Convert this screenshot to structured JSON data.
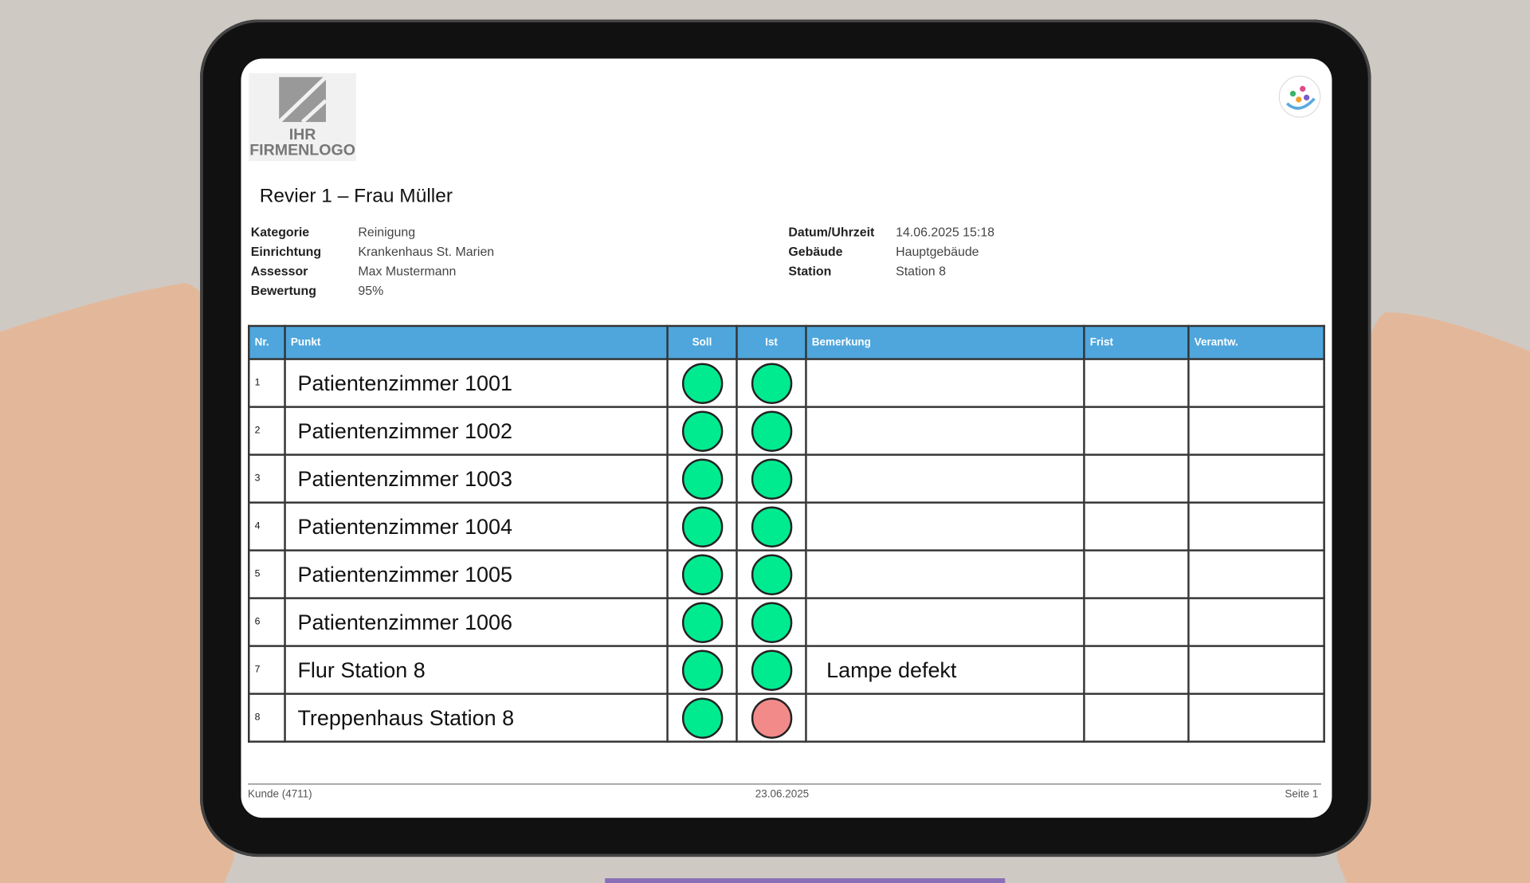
{
  "logo": {
    "line1": "IHR",
    "line2": "FIRMENLOGO"
  },
  "title": "Revier 1 – Frau Müller",
  "info_left": [
    [
      "Kategorie",
      "Reinigung"
    ],
    [
      "Einrichtung",
      "Krankenhaus St. Marien"
    ],
    [
      "Assessor",
      "Max Mustermann"
    ],
    [
      "Bewertung",
      "95%"
    ]
  ],
  "info_right": [
    [
      "Datum/Uhrzeit",
      "14.06.2025 15:18"
    ],
    [
      "Gebäude",
      "Hauptgebäude"
    ],
    [
      "Station",
      "Station 8"
    ]
  ],
  "table": {
    "header": [
      "Nr.",
      "Punkt",
      "Soll",
      "Ist",
      "Bemerkung",
      "Frist",
      "Verantw."
    ],
    "header_color": "#4ea6dc",
    "rows": [
      {
        "nr": "1",
        "punkt": "Patientenzimmer 1001",
        "soll": "#00ea90",
        "ist": "#00ea90",
        "bemerkung": ""
      },
      {
        "nr": "2",
        "punkt": "Patientenzimmer 1002",
        "soll": "#00ea90",
        "ist": "#00ea90",
        "bemerkung": ""
      },
      {
        "nr": "3",
        "punkt": "Patientenzimmer 1003",
        "soll": "#00ea90",
        "ist": "#00ea90",
        "bemerkung": ""
      },
      {
        "nr": "4",
        "punkt": "Patientenzimmer 1004",
        "soll": "#00ea90",
        "ist": "#00ea90",
        "bemerkung": ""
      },
      {
        "nr": "5",
        "punkt": "Patientenzimmer 1005",
        "soll": "#00ea90",
        "ist": "#00ea90",
        "bemerkung": ""
      },
      {
        "nr": "6",
        "punkt": "Patientenzimmer 1006",
        "soll": "#00ea90",
        "ist": "#00ea90",
        "bemerkung": ""
      },
      {
        "nr": "7",
        "punkt": "Flur Station 8",
        "soll": "#00ea90",
        "ist": "#00ea90",
        "bemerkung": "Lampe defekt"
      },
      {
        "nr": "8",
        "punkt": "Treppenhaus Station 8",
        "soll": "#00ea90",
        "ist": "#f28a8a",
        "bemerkung": ""
      }
    ]
  },
  "footer": {
    "left": "Kunde (4711)",
    "center": "23.06.2025",
    "right": "Seite 1"
  }
}
